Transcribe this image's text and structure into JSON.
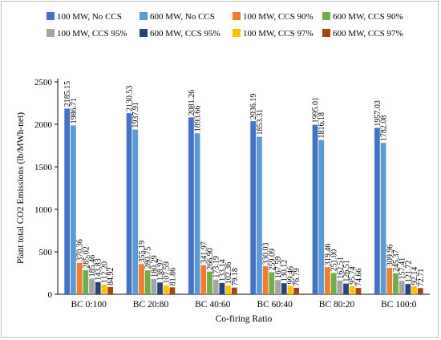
{
  "chart_data": {
    "type": "bar",
    "title": "",
    "xlabel": "Co-firing Ratio",
    "ylabel": "Plant total CO2 Emissions (lb/MWh-net)",
    "ylim": [
      0,
      2500
    ],
    "yticks": [
      0,
      500,
      1000,
      1500,
      2000,
      2500
    ],
    "grid": false,
    "legend_position": "top",
    "categories": [
      "BC 0:100",
      "BC 20:80",
      "BC 40:60",
      "BC 60:40",
      "BC 80:20",
      "BC 100:0"
    ],
    "series": [
      {
        "name": "100 MW, No CCS",
        "color": "#4472c4",
        "values": [
          2185.15,
          2130.53,
          2081.26,
          2036.19,
          1995.01,
          1957.03
        ]
      },
      {
        "name": "600 MW, No CCS",
        "color": "#5b9bd5",
        "values": [
          1986.71,
          1937.91,
          1893.66,
          1853.31,
          1816.18,
          1782.08
        ]
      },
      {
        "name": "100 MW, CCS 90%",
        "color": "#ed7d31",
        "values": [
          370.36,
          355.19,
          341.97,
          330.03,
          319.46,
          309.96
        ]
      },
      {
        "name": "600 MW, CCS 90%",
        "color": "#70ad47",
        "values": [
          285.02,
          280.75,
          266.9,
          259.09,
          251.0,
          245.37
        ]
      },
      {
        "name": "100 MW, CCS 95%",
        "color": "#a5a5a5",
        "values": [
          185.46,
          180.29,
          173.19,
          167.59,
          162.51,
          157.41
        ]
      },
      {
        "name": "600 MW, CCS 95%",
        "color": "#264478",
        "values": [
          143.83,
          138.97,
          133.14,
          130.12,
          126.51,
          121.72
        ]
      },
      {
        "name": "100 MW, CCS 97%",
        "color": "#ffc000",
        "values": [
          112.2,
          107.59,
          102.36,
          99.46,
          95.74,
          92.14
        ]
      },
      {
        "name": "600 MW, CCS 97%",
        "color": "#9e480e",
        "values": [
          84.92,
          81.86,
          79.18,
          76.79,
          74.66,
          72.71
        ]
      }
    ]
  }
}
